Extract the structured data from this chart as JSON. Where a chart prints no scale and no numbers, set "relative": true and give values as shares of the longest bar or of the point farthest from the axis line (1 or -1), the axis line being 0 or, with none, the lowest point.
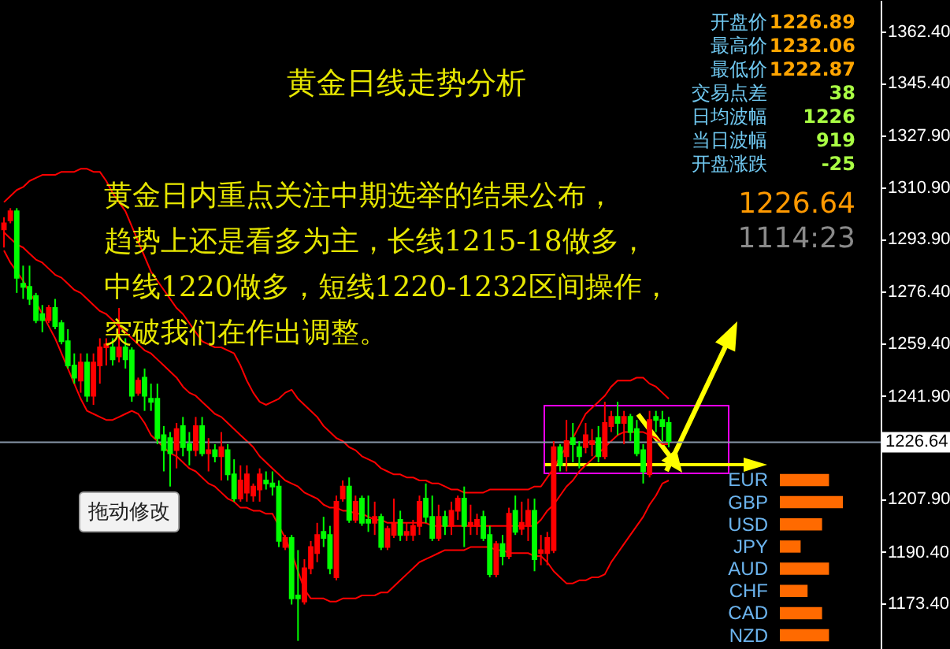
{
  "chart_data": [
    {
      "type": "candlestick",
      "title": "黄金日线走势分析",
      "annotations": [
        "拖动修改",
        "黄金日内重点关注中期选举的结果公布，",
        "趋势上还是看多为主，长线1215-18做多，",
        "中线1220做多，短线1220-1232区间操作，",
        "突破我们在作出调整。",
        "开盘价",
        "1226.89",
        "最高价",
        "1232.06",
        "最低价",
        "1222.87",
        "交易点差",
        "38",
        "日均波幅",
        "1226",
        "当日波幅",
        "919",
        "开盘涨跌",
        "-25",
        "1226.64",
        "1114:23"
      ],
      "categories": [
        null,
        null,
        null,
        null,
        null,
        null,
        null,
        null,
        null,
        null,
        null,
        null,
        null,
        null,
        null,
        null,
        null,
        null,
        null,
        null,
        null,
        null,
        null,
        null,
        null,
        null,
        null,
        null,
        null,
        null,
        null,
        null,
        null,
        null,
        null,
        null,
        null,
        null,
        null,
        null,
        null,
        null,
        null,
        null,
        null,
        null,
        null,
        null,
        null,
        null,
        null,
        null,
        null,
        null,
        null,
        null,
        null,
        null,
        null,
        null,
        null,
        null,
        null,
        null,
        null,
        null,
        null,
        null,
        null,
        null,
        null,
        null,
        null,
        null,
        null,
        null,
        null,
        null,
        null,
        null,
        null,
        null,
        null,
        null,
        null,
        null,
        null,
        null,
        null,
        null,
        null,
        null,
        null,
        null,
        null,
        null,
        null,
        null,
        null,
        null,
        null,
        null,
        null,
        null,
        null
      ],
      "ohlc": [
        [
          1297,
          1301,
          1291,
          1299
        ],
        [
          1300,
          1304,
          1299,
          1303
        ],
        [
          1303,
          1304,
          1276,
          1281
        ],
        [
          1279,
          1285,
          1274,
          1278
        ],
        [
          1278,
          1285,
          1272,
          1274
        ],
        [
          1275,
          1276,
          1266,
          1267
        ],
        [
          1269,
          1272,
          1263,
          1267
        ],
        [
          1267,
          1272,
          1266,
          1271
        ],
        [
          1271,
          1274,
          1264,
          1265
        ],
        [
          1266,
          1267,
          1259,
          1260
        ],
        [
          1260,
          1264,
          1251,
          1252
        ],
        [
          1252,
          1256,
          1246,
          1248
        ],
        [
          1247,
          1256,
          1243,
          1253
        ],
        [
          1253,
          1256,
          1240,
          1242
        ],
        [
          1242,
          1256,
          1239,
          1253
        ],
        [
          1252,
          1261,
          1246,
          1258
        ],
        [
          1258,
          1261,
          1252,
          1259
        ],
        [
          1258,
          1261,
          1252,
          1254
        ],
        [
          1255,
          1271,
          1253,
          1258
        ],
        [
          1258,
          1261,
          1251,
          1254
        ],
        [
          1257,
          1258,
          1240,
          1242
        ],
        [
          1243,
          1248,
          1242,
          1247
        ],
        [
          1248,
          1251,
          1237,
          1242
        ],
        [
          1241,
          1246,
          1237,
          1240
        ],
        [
          1241,
          1246,
          1226,
          1228
        ],
        [
          1229,
          1232,
          1217,
          1224
        ],
        [
          1228,
          1230,
          1212,
          1223
        ],
        [
          1224,
          1233,
          1218,
          1231
        ],
        [
          1232,
          1235,
          1222,
          1225
        ],
        [
          1226,
          1230,
          1219,
          1224
        ],
        [
          1224,
          1235,
          1222,
          1232
        ],
        [
          1232,
          1235,
          1222,
          1223
        ],
        [
          1223,
          1228,
          1217,
          1224
        ],
        [
          1224,
          1226,
          1220,
          1222
        ],
        [
          1222,
          1230,
          1214,
          1225
        ],
        [
          1224,
          1226,
          1214,
          1216
        ],
        [
          1216,
          1221,
          1207,
          1208
        ],
        [
          1208,
          1219,
          1207,
          1214
        ],
        [
          1210,
          1219,
          1207,
          1216
        ],
        [
          1209,
          1213,
          1207,
          1212
        ],
        [
          1211,
          1218,
          1207,
          1216
        ],
        [
          1214,
          1217,
          1211,
          1213
        ],
        [
          1213,
          1217,
          1209,
          1212
        ],
        [
          1212,
          1214,
          1192,
          1194
        ],
        [
          1192,
          1196,
          1191,
          1195
        ],
        [
          1195,
          1196,
          1173,
          1175
        ],
        [
          1176,
          1191,
          1161,
          1175
        ],
        [
          1174,
          1188,
          1173,
          1185
        ],
        [
          1185,
          1194,
          1183,
          1192
        ],
        [
          1190,
          1200,
          1187,
          1196
        ],
        [
          1197,
          1202,
          1192,
          1195
        ],
        [
          1196,
          1199,
          1183,
          1185
        ],
        [
          1182,
          1209,
          1181,
          1207
        ],
        [
          1208,
          1214,
          1207,
          1212
        ],
        [
          1212,
          1215,
          1200,
          1201
        ],
        [
          1201,
          1209,
          1200,
          1207
        ],
        [
          1208,
          1209,
          1199,
          1200
        ],
        [
          1201,
          1209,
          1197,
          1200
        ],
        [
          1200,
          1207,
          1196,
          1202
        ],
        [
          1202,
          1203,
          1191,
          1192
        ],
        [
          1192,
          1199,
          1191,
          1198
        ],
        [
          1196,
          1208,
          1195,
          1200
        ],
        [
          1201,
          1204,
          1194,
          1196
        ],
        [
          1196,
          1200,
          1194,
          1197
        ],
        [
          1196,
          1201,
          1194,
          1199
        ],
        [
          1199,
          1209,
          1196,
          1207
        ],
        [
          1208,
          1213,
          1200,
          1202
        ],
        [
          1202,
          1209,
          1194,
          1195
        ],
        [
          1195,
          1206,
          1194,
          1202
        ],
        [
          1202,
          1204,
          1196,
          1199
        ],
        [
          1199,
          1207,
          1196,
          1204
        ],
        [
          1204,
          1209,
          1201,
          1208
        ],
        [
          1208,
          1212,
          1192,
          1199
        ],
        [
          1199,
          1206,
          1196,
          1200
        ],
        [
          1199,
          1203,
          1196,
          1201
        ],
        [
          1202,
          1204,
          1194,
          1195
        ],
        [
          1196,
          1199,
          1182,
          1183
        ],
        [
          1183,
          1194,
          1182,
          1193
        ],
        [
          1193,
          1196,
          1186,
          1189
        ],
        [
          1189,
          1205,
          1188,
          1203
        ],
        [
          1204,
          1209,
          1196,
          1197
        ],
        [
          1198,
          1207,
          1196,
          1200
        ],
        [
          1199,
          1208,
          1194,
          1204
        ],
        [
          1204,
          1208,
          1184,
          1188
        ],
        [
          1190,
          1196,
          1186,
          1191
        ],
        [
          1190,
          1197,
          1186,
          1195
        ],
        [
          1191,
          1227,
          1190,
          1225
        ],
        [
          1225,
          1226,
          1217,
          1219
        ],
        [
          1222,
          1234,
          1217,
          1227
        ],
        [
          1228,
          1233,
          1220,
          1226
        ],
        [
          1225,
          1227,
          1218,
          1222
        ],
        [
          1225,
          1233,
          1223,
          1229
        ],
        [
          1226,
          1231,
          1222,
          1227
        ],
        [
          1228,
          1232,
          1220,
          1222
        ],
        [
          1222,
          1240,
          1221,
          1233
        ],
        [
          1232,
          1237,
          1230,
          1235
        ],
        [
          1235,
          1240,
          1229,
          1233
        ],
        [
          1233,
          1237,
          1226,
          1235
        ],
        [
          1235,
          1236,
          1227,
          1230
        ],
        [
          1231,
          1234,
          1222,
          1223
        ],
        [
          1224,
          1226,
          1213,
          1217
        ],
        [
          1216,
          1237,
          1215,
          1234
        ],
        [
          1235,
          1237,
          1230,
          1234
        ],
        [
          1234,
          1237,
          1227,
          1232
        ],
        [
          1233,
          1235,
          1225,
          1227
        ]
      ],
      "colors": [
        "#ff0000",
        "#ff0000",
        "#00ff00",
        "#00ff00",
        "#00ff00",
        "#00ff00",
        "#00ff00",
        "#ff0000",
        "#00ff00",
        "#00ff00",
        "#00ff00",
        "#00ff00",
        "#ff0000",
        "#00ff00",
        "#ff0000",
        "#ff0000",
        "#ff0000",
        "#00ff00",
        "#ff0000",
        "#00ff00",
        "#00ff00",
        "#ff0000",
        "#00ff00",
        "#00ff00",
        "#00ff00",
        "#00ff00",
        "#00ff00",
        "#ff0000",
        "#00ff00",
        "#00ff00",
        "#ff0000",
        "#00ff00",
        "#ff0000",
        "#00ff00",
        "#ff0000",
        "#00ff00",
        "#00ff00",
        "#ff0000",
        "#ff0000",
        "#ff0000",
        "#ff0000",
        "#00ff00",
        "#00ff00",
        "#00ff00",
        "#ff0000",
        "#00ff00",
        "#00ff00",
        "#ff0000",
        "#ff0000",
        "#ff0000",
        "#00ff00",
        "#00ff00",
        "#ff0000",
        "#ff0000",
        "#00ff00",
        "#ff0000",
        "#00ff00",
        "#00ff00",
        "#ff0000",
        "#00ff00",
        "#ff0000",
        "#ff0000",
        "#00ff00",
        "#ff0000",
        "#ff0000",
        "#ff0000",
        "#00ff00",
        "#00ff00",
        "#ff0000",
        "#00ff00",
        "#ff0000",
        "#ff0000",
        "#00ff00",
        "#ff0000",
        "#ff0000",
        "#00ff00",
        "#00ff00",
        "#ff0000",
        "#00ff00",
        "#ff0000",
        "#00ff00",
        "#ff0000",
        "#ff0000",
        "#00ff00",
        "#ff0000",
        "#ff0000",
        "#ff0000",
        "#00ff00",
        "#ff0000",
        "#00ff00",
        "#00ff00",
        "#ff0000",
        "#ff0000",
        "#00ff00",
        "#ff0000",
        "#ff0000",
        "#00ff00",
        "#ff0000",
        "#00ff00",
        "#00ff00",
        "#00ff00",
        "#ff0000",
        "#00ff00",
        "#00ff00",
        "#00ff00"
      ],
      "series": [
        {
          "type": "line",
          "color": "#ff0000",
          "values": [
            1306,
            1308,
            1310,
            1311,
            1313,
            1314,
            1315,
            1315,
            1315,
            1316,
            1316,
            1316,
            1317,
            1317,
            1316,
            1316,
            1313,
            1309,
            1306,
            1303,
            1298,
            1293,
            1288,
            1283,
            1280,
            1277,
            1274,
            1271,
            1269,
            1266,
            1263,
            1260,
            1259,
            1258,
            1258,
            1257,
            1256,
            1252,
            1247,
            1243,
            1240,
            1239,
            1240,
            1241,
            1243,
            1244,
            1241,
            1239,
            1237,
            1235,
            1232,
            1230,
            1228,
            1227,
            1225,
            1224,
            1222,
            1221,
            1220,
            1218,
            1217,
            1216,
            1216,
            1215,
            1215,
            1214,
            1214,
            1213,
            1213,
            1212,
            1211,
            1211,
            1210,
            1210,
            1210,
            1210,
            1211,
            1211,
            1211,
            1211,
            1211,
            1211,
            1211,
            1212,
            1212,
            1215,
            1218,
            1222,
            1225,
            1228,
            1232,
            1236,
            1238,
            1240,
            1242,
            1245,
            1247,
            1247,
            1247,
            1248,
            1248,
            1246,
            1245,
            1243,
            1241
          ]
        },
        {
          "type": "line",
          "color": "#ff0000",
          "values": [
            1296,
            1294,
            1292,
            1291,
            1289,
            1287,
            1286,
            1284,
            1282,
            1281,
            1279,
            1277,
            1276,
            1274,
            1272,
            1270,
            1269,
            1267,
            1265,
            1263,
            1261,
            1259,
            1257,
            1256,
            1254,
            1252,
            1250,
            1248,
            1245,
            1243,
            1242,
            1240,
            1238,
            1236,
            1235,
            1233,
            1231,
            1229,
            1227,
            1225,
            1222,
            1220,
            1218,
            1216,
            1214,
            1213,
            1212,
            1210,
            1209,
            1208,
            1206,
            1205,
            1205,
            1204,
            1204,
            1203,
            1203,
            1202,
            1201,
            1201,
            1200,
            1200,
            1200,
            1200,
            1200,
            1200,
            1200,
            1199,
            1199,
            1199,
            1199,
            1199,
            1199,
            1199,
            1199,
            1199,
            1199,
            1199,
            1199,
            1199,
            1199,
            1199,
            1199,
            1199,
            1201,
            1204,
            1206,
            1209,
            1212,
            1214,
            1217,
            1219,
            1221,
            1223,
            1225,
            1227,
            1229,
            1230,
            1230,
            1230,
            1230,
            1229,
            1228,
            1226,
            1226
          ]
        },
        {
          "type": "line",
          "color": "#ff0000",
          "values": [
            1290,
            1286,
            1283,
            1280,
            1276,
            1273,
            1269,
            1265,
            1261,
            1256,
            1251,
            1246,
            1241,
            1237,
            1236,
            1235,
            1234,
            1234,
            1235,
            1236,
            1237,
            1236,
            1233,
            1229,
            1227,
            1225,
            1223,
            1222,
            1220,
            1218,
            1217,
            1215,
            1213,
            1212,
            1210,
            1208,
            1207,
            1205,
            1205,
            1204,
            1204,
            1203,
            1203,
            1199,
            1195,
            1190,
            1184,
            1178,
            1175,
            1175,
            1175,
            1174,
            1174,
            1175,
            1175,
            1175,
            1176,
            1176,
            1176,
            1177,
            1177,
            1179,
            1181,
            1183,
            1185,
            1187,
            1188,
            1189,
            1190,
            1191,
            1191,
            1191,
            1191,
            1192,
            1192,
            1192,
            1192,
            1191,
            1191,
            1190,
            1190,
            1190,
            1190,
            1189,
            1189,
            1187,
            1184,
            1182,
            1180,
            1180,
            1181,
            1181,
            1182,
            1182,
            1183,
            1187,
            1190,
            1193,
            1196,
            1199,
            1202,
            1206,
            1209,
            1213,
            1214
          ]
        }
      ],
      "ylim": [
        1158.3,
        1372.8
      ],
      "yticks": [
        {
          "value": 1173.4,
          "label": "1173.40"
        },
        {
          "value": 1190.4,
          "label": "1190.40"
        },
        {
          "value": 1207.9,
          "label": "1207.90"
        },
        {
          "value": 1241.9,
          "label": "1241.90"
        },
        {
          "value": 1259.4,
          "label": "1259.40"
        },
        {
          "value": 1276.4,
          "label": "1276.40"
        },
        {
          "value": 1293.9,
          "label": "1293.90"
        },
        {
          "value": 1310.9,
          "label": "1310.90"
        },
        {
          "value": 1327.9,
          "label": "1327.90"
        },
        {
          "value": 1345.4,
          "label": "1345.40"
        },
        {
          "value": 1362.4,
          "label": "1362.40"
        }
      ],
      "ref_lines": [
        {
          "axis": "y",
          "value": 1226.64,
          "label": "1226.64",
          "color": "#8896a8"
        }
      ]
    },
    {
      "type": "bar",
      "orientation": "horizontal",
      "relative": true,
      "categories": [
        "EUR",
        "GBP",
        "USD",
        "JPY",
        "AUD",
        "CHF",
        "CAD",
        "NZD"
      ],
      "values": [
        0.78,
        1,
        0.67,
        0.33,
        0.78,
        0.44,
        0.67,
        0.78
      ],
      "color": "#ff6a00"
    }
  ]
}
